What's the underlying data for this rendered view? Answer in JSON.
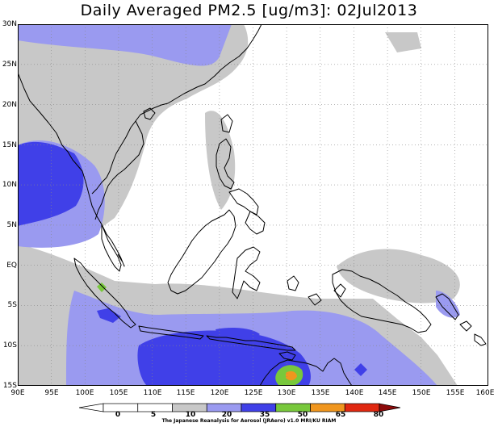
{
  "title": "Daily Averaged PM2.5 [ug/m3]: 02Jul2013",
  "map": {
    "lat_labels": [
      "30N",
      "25N",
      "20N",
      "15N",
      "10N",
      "5N",
      "EQ",
      "5S",
      "10S",
      "15S"
    ],
    "lon_labels": [
      "90E",
      "95E",
      "100E",
      "105E",
      "110E",
      "115E",
      "120E",
      "125E",
      "130E",
      "135E",
      "140E",
      "145E",
      "150E",
      "155E",
      "160E"
    ],
    "colors": {
      "land_outline": "#000000",
      "grid": "#888888",
      "background": "#ffffff"
    }
  },
  "colorbar": {
    "labels": [
      "0",
      "5",
      "10",
      "20",
      "35",
      "50",
      "65",
      "80"
    ],
    "bins": [
      {
        "range": "0-5",
        "color": "#ffffff"
      },
      {
        "range": "5-10",
        "color": "#ffffff"
      },
      {
        "range": "10-20",
        "color": "#c8c8c8"
      },
      {
        "range": "20-35",
        "color": "#9a9af0"
      },
      {
        "range": "35-50",
        "color": "#4040e8"
      },
      {
        "range": "50-65",
        "color": "#78c83c"
      },
      {
        "range": "65-80",
        "color": "#f0961e"
      },
      {
        "range": "80+",
        "color": "#e02810"
      }
    ],
    "overflow_color": "#8c0a0a"
  },
  "credit": "The Japanese Reanalysis for Aerosol (JRAero) v1.0 MRI/KU RIAM"
}
